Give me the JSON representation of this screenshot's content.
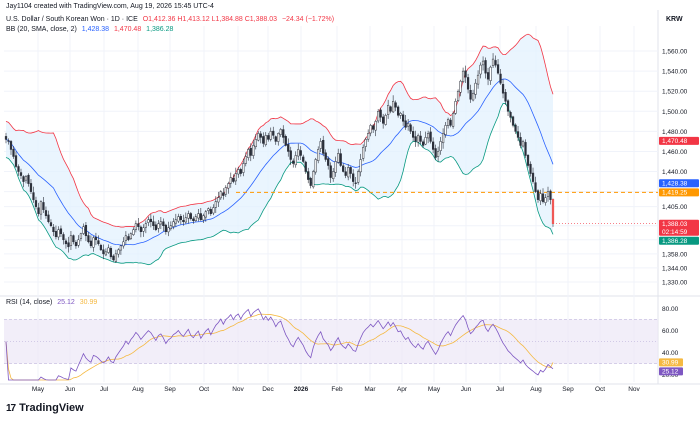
{
  "header": {
    "credit": "Jay1104 created with TradingView.com, Aug 19, 2026 15:45 UTC-4",
    "symbol_line": {
      "name": "U.S. Dollar / South Korean Won · 1D · ICE",
      "ohlc_text": "O1,412.36  H1,413.12  L1,384.88  C1,388.03",
      "change_text": "−24.34 (−1.72%)"
    },
    "bb_line": {
      "label": "BB (20, SMA, close, 2)",
      "basis": "1,428.38",
      "upper": "1,470.48",
      "lower": "1,386.28"
    },
    "rsi_line": {
      "label": "RSI (14, close)",
      "rsi": "25.12",
      "ma": "30.99"
    },
    "currency": "KRW"
  },
  "footer": {
    "logo_text": "TradingView",
    "logo_mark": "17"
  },
  "colors": {
    "up": "#26a69a",
    "down": "#ef5350",
    "candle_outline": "#2a2e39",
    "bb_upper": "#f23645",
    "bb_basis": "#2962ff",
    "bb_lower": "#089981",
    "bb_fill": "#e3f2fd",
    "rsi_line": "#7e57c2",
    "rsi_ma": "#f5b942",
    "rsi_band": "#ede7f6",
    "hline": "#ff9800",
    "grid": "#f0f3fa"
  },
  "chart_data": [
    {
      "type": "candlestick",
      "title": "U.S. Dollar / South Korean Won · 1D · ICE",
      "series_note": "daily OHLC with Bollinger Bands (20, 2)",
      "ylim": [
        1320,
        1575
      ],
      "y_ticks": [
        1330,
        1344,
        1358,
        1372,
        1386,
        1405,
        1420,
        1440,
        1460,
        1480,
        1500,
        1520,
        1540,
        1560
      ],
      "x_ticks": [
        "May",
        "Jun",
        "Jul",
        "Aug",
        "Sep",
        "Oct",
        "Nov",
        "Dec",
        "2026",
        "Feb",
        "Mar",
        "Apr",
        "May",
        "Jun",
        "Jul",
        "Aug",
        "Sep",
        "Oct",
        "Nov"
      ],
      "close_path": [
        1472,
        1470,
        1462,
        1455,
        1445,
        1440,
        1436,
        1430,
        1435,
        1428,
        1420,
        1412,
        1405,
        1398,
        1410,
        1402,
        1396,
        1390,
        1386,
        1380,
        1375,
        1382,
        1378,
        1372,
        1368,
        1365,
        1376,
        1370,
        1366,
        1372,
        1378,
        1385,
        1376,
        1370,
        1366,
        1374,
        1372,
        1368,
        1362,
        1358,
        1360,
        1364,
        1355,
        1352,
        1358,
        1362,
        1366,
        1370,
        1376,
        1372,
        1378,
        1382,
        1388,
        1385,
        1380,
        1384,
        1388,
        1392,
        1390,
        1386,
        1382,
        1388,
        1390,
        1386,
        1380,
        1384,
        1386,
        1390,
        1392,
        1395,
        1392,
        1390,
        1394,
        1398,
        1393,
        1391,
        1395,
        1398,
        1392,
        1396,
        1400,
        1403,
        1398,
        1404,
        1410,
        1414,
        1420,
        1416,
        1424,
        1428,
        1434,
        1430,
        1438,
        1442,
        1438,
        1448,
        1455,
        1462,
        1456,
        1466,
        1472,
        1478,
        1474,
        1468,
        1476,
        1472,
        1480,
        1476,
        1470,
        1478,
        1482,
        1474,
        1466,
        1460,
        1452,
        1448,
        1456,
        1462,
        1456,
        1450,
        1440,
        1432,
        1426,
        1440,
        1452,
        1462,
        1470,
        1458,
        1452,
        1446,
        1434,
        1440,
        1450,
        1458,
        1446,
        1440,
        1436,
        1444,
        1438,
        1430,
        1428,
        1440,
        1452,
        1464,
        1472,
        1478,
        1486,
        1482,
        1490,
        1500,
        1494,
        1488,
        1496,
        1506,
        1500,
        1510,
        1504,
        1496,
        1498,
        1490,
        1484,
        1488,
        1480,
        1474,
        1470,
        1476,
        1470,
        1466,
        1474,
        1478,
        1470,
        1462,
        1454,
        1460,
        1470,
        1478,
        1486,
        1492,
        1486,
        1498,
        1510,
        1520,
        1530,
        1540,
        1534,
        1522,
        1512,
        1518,
        1528,
        1536,
        1546,
        1550,
        1538,
        1532,
        1544,
        1552,
        1546,
        1538,
        1528,
        1518,
        1510,
        1500,
        1494,
        1486,
        1480,
        1474,
        1466,
        1470,
        1456,
        1446,
        1438,
        1430,
        1420,
        1412,
        1418,
        1410,
        1414,
        1420,
        1412,
        1388
      ],
      "last": {
        "open": 1412.36,
        "high": 1413.12,
        "low": 1384.88,
        "close": 1388.03
      },
      "price_labels": [
        {
          "text": "1,470.48",
          "value": 1470.48,
          "color": "#f23645"
        },
        {
          "text": "1,428.38",
          "value": 1428.38,
          "color": "#2962ff"
        },
        {
          "text": "1,419.25",
          "value": 1419.25,
          "color": "#ff9800"
        },
        {
          "text": "1,388.03",
          "sub": "02:14:59",
          "value": 1388.03,
          "color": "#f23645"
        },
        {
          "text": "1,386.28",
          "value": 1386.28,
          "color": "#089981"
        }
      ],
      "horizontal_line": {
        "value": 1419.25,
        "color": "#ff9800",
        "style": "dashed"
      },
      "bb_period": 20,
      "bb_mult": 2
    },
    {
      "type": "line",
      "title": "RSI (14, close)",
      "ylim": [
        15,
        85
      ],
      "y_ticks": [
        20,
        40,
        60,
        80
      ],
      "bands": [
        30,
        70
      ],
      "last": {
        "rsi": 25.12,
        "ma": 30.99
      },
      "value_labels": [
        {
          "text": "30.99",
          "value": 30.99,
          "color": "#f5b942"
        },
        {
          "text": "25.12",
          "value": 25.12,
          "color": "#7e57c2"
        }
      ]
    }
  ]
}
